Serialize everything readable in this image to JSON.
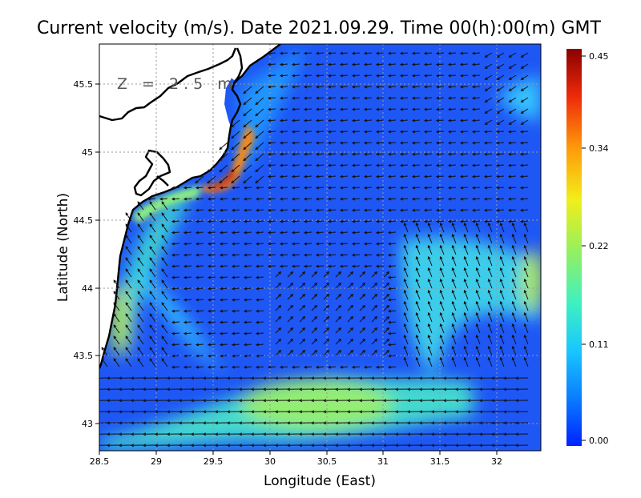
{
  "title": "Current velocity (m/s). Date 2021.09.29. Time 00(h):00(m) GMT",
  "depth_label": "Z = 2.5 m",
  "x_axis": {
    "label": "Longitude (East)",
    "ticks": [
      "28.5",
      "29",
      "29.5",
      "30",
      "30.5",
      "31",
      "31.5",
      "32"
    ]
  },
  "y_axis": {
    "label": "Latitude (North)",
    "ticks": [
      "45.5",
      "45",
      "44.5",
      "44",
      "43.5",
      "43"
    ]
  },
  "colorbar": {
    "ticks": [
      "0.45",
      "0.34",
      "0.22",
      "0.11",
      "0.00"
    ],
    "colors": [
      "#0022ff",
      "#0a7dff",
      "#19c7ff",
      "#3ff0c0",
      "#9bf05a",
      "#f2ee1a",
      "#ff9a0a",
      "#ee2a0a",
      "#8a0000"
    ]
  },
  "colors": {
    "sea_base": "#1f57f5",
    "land": "#ffffff",
    "coastline": "#000000",
    "arrows": "#111111"
  }
}
